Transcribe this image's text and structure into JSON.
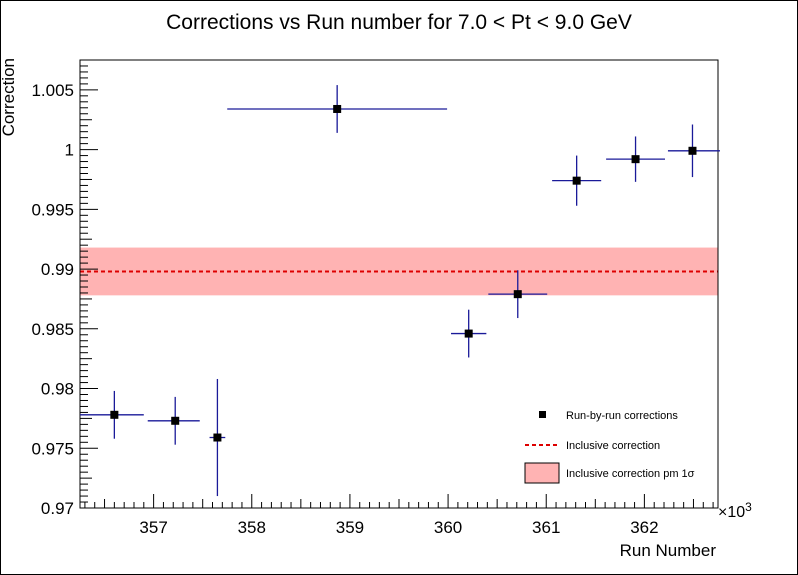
{
  "chart_data": {
    "type": "scatter",
    "title": "Corrections vs Run number for 7.0 < Pt < 9.0 GeV",
    "xlabel": "Run Number",
    "ylabel": "Correction",
    "x_multiplier_label": "×10",
    "x_multiplier_exponent": "3",
    "xlim": [
      356.25,
      362.75
    ],
    "ylim": [
      0.97,
      1.0075
    ],
    "x_ticks": [
      {
        "value": 357,
        "label": "357"
      },
      {
        "value": 358,
        "label": "358"
      },
      {
        "value": 359,
        "label": "359"
      },
      {
        "value": 360,
        "label": "360"
      },
      {
        "value": 361,
        "label": "361"
      },
      {
        "value": 362,
        "label": "362"
      }
    ],
    "y_ticks": [
      {
        "value": 0.97,
        "label": "0.97"
      },
      {
        "value": 0.975,
        "label": "0.975"
      },
      {
        "value": 0.98,
        "label": "0.98"
      },
      {
        "value": 0.985,
        "label": "0.985"
      },
      {
        "value": 0.99,
        "label": "0.99"
      },
      {
        "value": 0.995,
        "label": "0.995"
      },
      {
        "value": 1.0,
        "label": "1"
      },
      {
        "value": 1.005,
        "label": "1.005"
      }
    ],
    "grid": false,
    "series": [
      {
        "name": "Run-by-run corrections",
        "color": "#000000",
        "error_color": "#1a1a99",
        "points": [
          {
            "x": 356.6,
            "y": 0.9778,
            "xerr_low": 0.35,
            "xerr_high": 0.3,
            "yerr": 0.002
          },
          {
            "x": 357.22,
            "y": 0.9773,
            "xerr_low": 0.28,
            "xerr_high": 0.25,
            "yerr": 0.002
          },
          {
            "x": 357.65,
            "y": 0.9759,
            "xerr_low": 0.08,
            "xerr_high": 0.08,
            "yerr": 0.0049
          },
          {
            "x": 358.87,
            "y": 1.0034,
            "xerr_low": 1.12,
            "xerr_high": 1.12,
            "yerr": 0.002
          },
          {
            "x": 360.21,
            "y": 0.9846,
            "xerr_low": 0.18,
            "xerr_high": 0.18,
            "yerr": 0.002
          },
          {
            "x": 360.71,
            "y": 0.9879,
            "xerr_low": 0.3,
            "xerr_high": 0.3,
            "yerr": 0.002
          },
          {
            "x": 361.31,
            "y": 0.9974,
            "xerr_low": 0.25,
            "xerr_high": 0.25,
            "yerr": 0.0021
          },
          {
            "x": 361.91,
            "y": 0.9992,
            "xerr_low": 0.3,
            "xerr_high": 0.3,
            "yerr": 0.0019
          },
          {
            "x": 362.49,
            "y": 0.9999,
            "xerr_low": 0.25,
            "xerr_high": 0.28,
            "yerr": 0.0022
          }
        ]
      },
      {
        "name": "Inclusive correction",
        "color": "#dd0000",
        "value": 0.9898,
        "style": "dashed"
      },
      {
        "name": "Inclusive correction pm 1σ",
        "color": "#ffb3b3",
        "low": 0.9878,
        "high": 0.9918
      }
    ],
    "legend_position": "bottom-right"
  }
}
